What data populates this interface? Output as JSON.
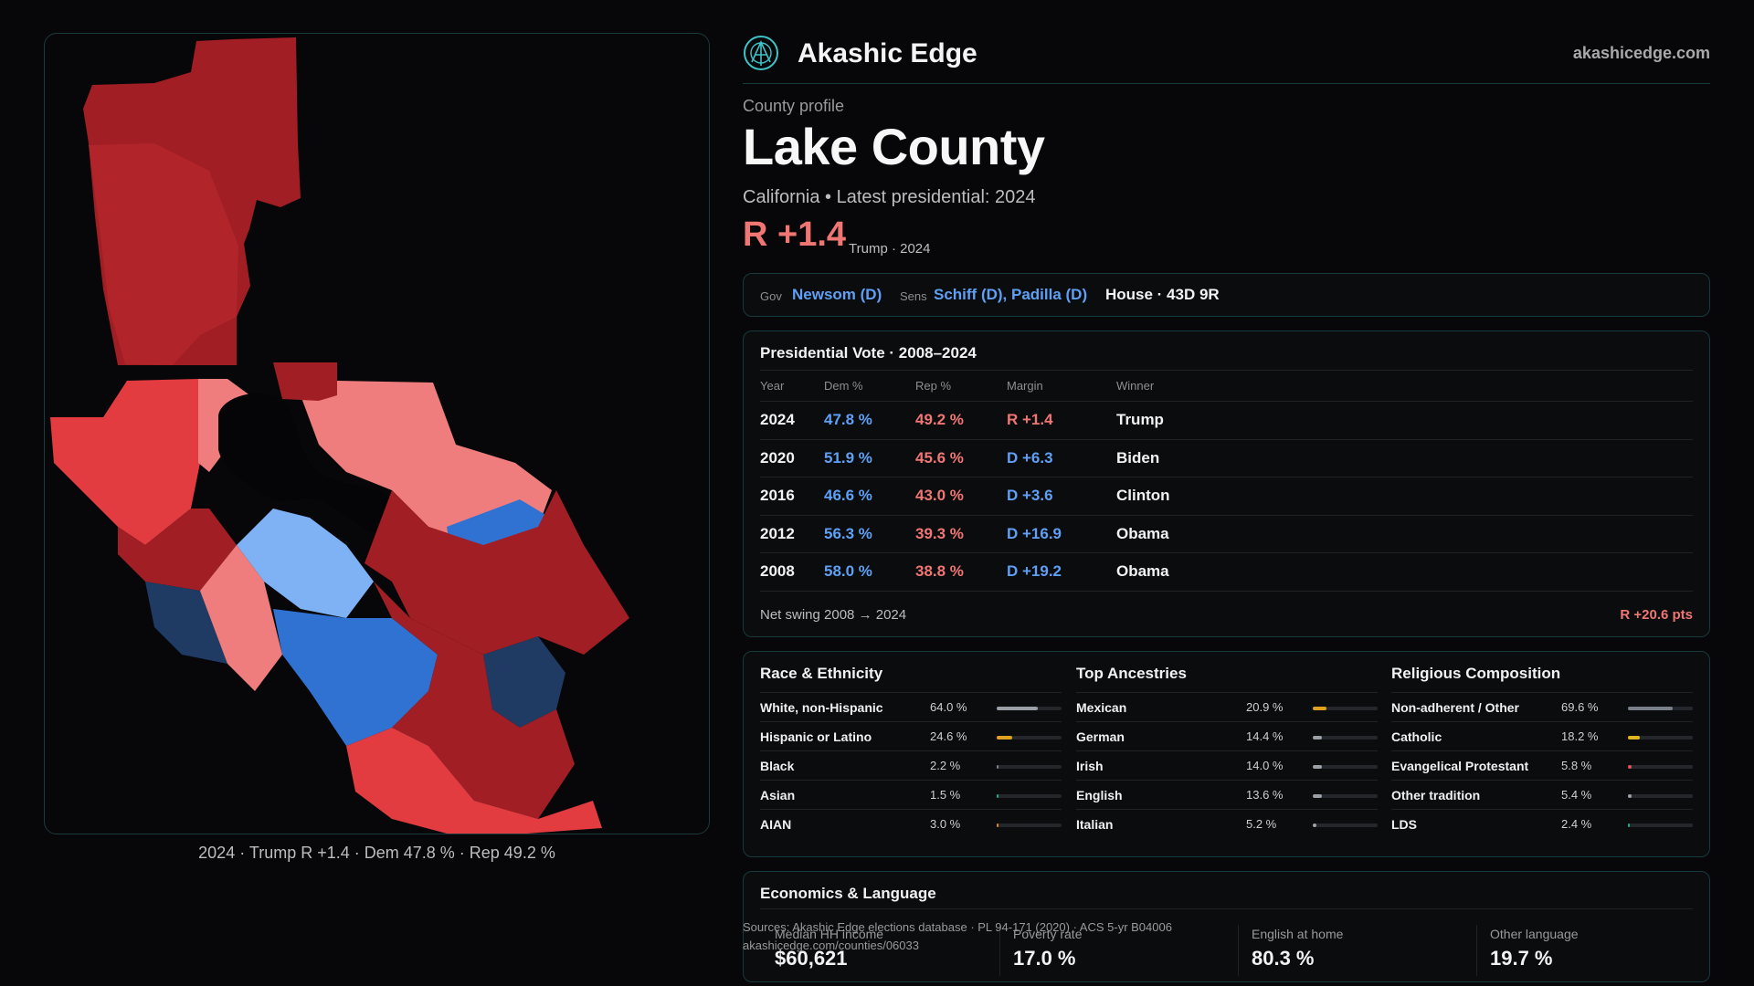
{
  "brand": {
    "name": "Akashic Edge",
    "site": "akashicedge.com"
  },
  "profile": {
    "eyebrow": "County profile",
    "title": "Lake County",
    "subtitle": "California • Latest presidential: 2024",
    "margin": "R +1.4",
    "margin_note": "Trump · 2024"
  },
  "officials": {
    "gov_label": "Gov",
    "gov": "Newsom (D)",
    "sens_label": "Sens",
    "sens": "Schiff (D), Padilla (D)",
    "house": "House · 43D 9R"
  },
  "presidential": {
    "title": "Presidential Vote · 2008–2024",
    "headers": [
      "Year",
      "Dem %",
      "Rep %",
      "Margin",
      "Winner"
    ],
    "rows": [
      {
        "year": "2024",
        "dem": "47.8 %",
        "rep": "49.2 %",
        "margin": "R +1.4",
        "winner": "Trump"
      },
      {
        "year": "2020",
        "dem": "51.9 %",
        "rep": "45.6 %",
        "margin": "D +6.3",
        "winner": "Biden"
      },
      {
        "year": "2016",
        "dem": "46.6 %",
        "rep": "43.0 %",
        "margin": "D +3.6",
        "winner": "Clinton"
      },
      {
        "year": "2012",
        "dem": "56.3 %",
        "rep": "39.3 %",
        "margin": "D +16.9",
        "winner": "Obama"
      },
      {
        "year": "2008",
        "dem": "58.0 %",
        "rep": "38.8 %",
        "margin": "D +19.2",
        "winner": "Obama"
      }
    ],
    "net_swing_label": "Net swing 2008 → 2024",
    "net_swing_value": "R +20.6 pts"
  },
  "race": {
    "title": "Race & Ethnicity",
    "items": [
      {
        "name": "White, non-Hispanic",
        "value": "64.0 %",
        "pct": 0.64,
        "color": "#9aa0a6"
      },
      {
        "name": "Hispanic or Latino",
        "value": "24.6 %",
        "pct": 0.246,
        "color": "#e0a21e"
      },
      {
        "name": "Black",
        "value": "2.2 %",
        "pct": 0.022,
        "color": "#7a8088"
      },
      {
        "name": "Asian",
        "value": "1.5 %",
        "pct": 0.015,
        "color": "#2aa58a"
      },
      {
        "name": "AIAN",
        "value": "3.0 %",
        "pct": 0.03,
        "color": "#e0822a"
      }
    ]
  },
  "ancestry": {
    "title": "Top Ancestries",
    "items": [
      {
        "name": "Mexican",
        "value": "20.9 %",
        "pct": 0.209,
        "color": "#e0a21e"
      },
      {
        "name": "German",
        "value": "14.4 %",
        "pct": 0.144,
        "color": "#9aa0a6"
      },
      {
        "name": "Irish",
        "value": "14.0 %",
        "pct": 0.14,
        "color": "#9aa0a6"
      },
      {
        "name": "English",
        "value": "13.6 %",
        "pct": 0.136,
        "color": "#9aa0a6"
      },
      {
        "name": "Italian",
        "value": "5.2 %",
        "pct": 0.052,
        "color": "#9aa0a6"
      }
    ]
  },
  "religion": {
    "title": "Religious Composition",
    "items": [
      {
        "name": "Non-adherent / Other",
        "value": "69.6 %",
        "pct": 0.696,
        "color": "#7a8088"
      },
      {
        "name": "Catholic",
        "value": "18.2 %",
        "pct": 0.182,
        "color": "#e0b51e"
      },
      {
        "name": "Evangelical Protestant",
        "value": "5.8 %",
        "pct": 0.058,
        "color": "#e0505a"
      },
      {
        "name": "Other tradition",
        "value": "5.4 %",
        "pct": 0.054,
        "color": "#9aa0a6"
      },
      {
        "name": "LDS",
        "value": "2.4 %",
        "pct": 0.024,
        "color": "#2aa58a"
      }
    ]
  },
  "economics": {
    "title": "Economics & Language",
    "stats": [
      {
        "label": "Median HH income",
        "value": "$60,621"
      },
      {
        "label": "Poverty rate",
        "value": "17.0 %"
      },
      {
        "label": "English at home",
        "value": "80.3 %"
      },
      {
        "label": "Other language",
        "value": "19.7 %"
      }
    ]
  },
  "sources": {
    "line1": "Sources: Akashic Edge elections database · PL 94-171 (2020) · ACS 5-yr B04006",
    "line2": "akashicedge.com/counties/06033"
  },
  "map": {
    "caption": "2024 · Trump R +1.4 · Dem 47.8 % · Rep 49.2 %",
    "colors": {
      "r_strong": "#a01e24",
      "r_mid": "#e23c40",
      "r_light": "#f07d7d",
      "d_strong": "#1f3b64",
      "d_mid": "#2f72d2",
      "d_light": "#7fb1f5",
      "lake": "#050507"
    }
  }
}
